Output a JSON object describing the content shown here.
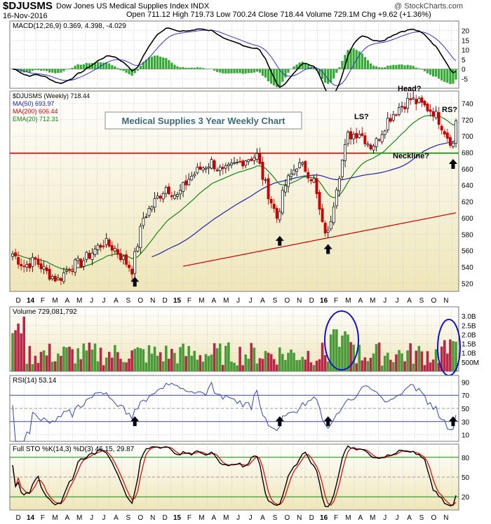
{
  "header": {
    "symbol": "$DJUSMS",
    "full_name": "Dow Jones US Medical Supplies Index INDX",
    "date": "16-Nov-2016",
    "ohlc_line": "Open 711.12  High 719.73  Low 700.24  Close 718.44  Volume 729.1M  Chg +9.62 (+1.36%)",
    "watermark": "@ StockCharts.com"
  },
  "chart_data": [
    {
      "type": "line",
      "panel": "MACD",
      "label": "MACD(12,26,9) 0.369, 4.398, -4.029",
      "ylim": [
        -10,
        25
      ],
      "y_ticks": [
        "-5",
        "0",
        "5",
        "10",
        "15",
        "20"
      ],
      "colors": {
        "macd": "#000000",
        "signal": "#3333cc",
        "hist": "#33aa33"
      }
    },
    {
      "type": "candlestick",
      "panel": "Price",
      "title": "Medical Supplies 3 Year Weekly Chart",
      "legend": [
        {
          "label": "$DJUSMS (Weekly) 718.44",
          "color": "#000000"
        },
        {
          "label": "MA(50) 693.97",
          "color": "#2222aa"
        },
        {
          "label": "MA(200) 606.44",
          "color": "#cc0000"
        },
        {
          "label": "EMA(20) 712.31",
          "color": "#118811"
        }
      ],
      "ylim": [
        510,
        755
      ],
      "y_ticks": [
        "520",
        "540",
        "560",
        "580",
        "600",
        "620",
        "640",
        "660",
        "680",
        "700",
        "720",
        "740"
      ],
      "horizontal_line": {
        "value": 679,
        "color": "#dd0000"
      },
      "neckline": {
        "value": 679,
        "color": "#119911"
      },
      "annotations": [
        "Head?",
        "LS?",
        "RS?",
        "Neckline?"
      ],
      "arrow_lows": [
        533,
        583,
        573,
        677
      ],
      "x_tick_labels": [
        "D",
        "14",
        "F",
        "M",
        "A",
        "M",
        "J",
        "J",
        "A",
        "S",
        "O",
        "N",
        "D",
        "15",
        "F",
        "M",
        "A",
        "M",
        "J",
        "J",
        "A",
        "S",
        "O",
        "N",
        "D",
        "16",
        "F",
        "M",
        "A",
        "M",
        "J",
        "J",
        "A",
        "S",
        "O",
        "N"
      ],
      "anchors": [
        {
          "w": 0,
          "close": 556
        },
        {
          "w": 4,
          "close": 541
        },
        {
          "w": 8,
          "close": 548
        },
        {
          "w": 12,
          "close": 533
        },
        {
          "w": 16,
          "close": 524
        },
        {
          "w": 20,
          "close": 540
        },
        {
          "w": 24,
          "close": 545
        },
        {
          "w": 28,
          "close": 558
        },
        {
          "w": 32,
          "close": 570
        },
        {
          "w": 36,
          "close": 562
        },
        {
          "w": 40,
          "close": 545
        },
        {
          "w": 42,
          "close": 537
        },
        {
          "w": 46,
          "close": 600
        },
        {
          "w": 50,
          "close": 620
        },
        {
          "w": 54,
          "close": 638
        },
        {
          "w": 58,
          "close": 626
        },
        {
          "w": 62,
          "close": 648
        },
        {
          "w": 66,
          "close": 660
        },
        {
          "w": 70,
          "close": 668
        },
        {
          "w": 74,
          "close": 655
        },
        {
          "w": 78,
          "close": 664
        },
        {
          "w": 82,
          "close": 672
        },
        {
          "w": 86,
          "close": 676
        },
        {
          "w": 88,
          "close": 650
        },
        {
          "w": 91,
          "close": 620
        },
        {
          "w": 93,
          "close": 600
        },
        {
          "w": 96,
          "close": 640
        },
        {
          "w": 100,
          "close": 665
        },
        {
          "w": 103,
          "close": 660
        },
        {
          "w": 106,
          "close": 645
        },
        {
          "w": 109,
          "close": 590
        },
        {
          "w": 111,
          "close": 580
        },
        {
          "w": 114,
          "close": 640
        },
        {
          "w": 118,
          "close": 700
        },
        {
          "w": 122,
          "close": 705
        },
        {
          "w": 126,
          "close": 688
        },
        {
          "w": 128,
          "close": 693
        },
        {
          "w": 132,
          "close": 720
        },
        {
          "w": 136,
          "close": 735
        },
        {
          "w": 140,
          "close": 745
        },
        {
          "w": 144,
          "close": 738
        },
        {
          "w": 148,
          "close": 730
        },
        {
          "w": 150,
          "close": 720
        },
        {
          "w": 153,
          "close": 700
        },
        {
          "w": 155,
          "close": 690
        },
        {
          "w": 156,
          "close": 718
        }
      ]
    },
    {
      "type": "bar",
      "panel": "Volume",
      "label": "Volume 729,081,792",
      "ylim": [
        0,
        3500
      ],
      "y_ticks": [
        "500M",
        "1.0B",
        "1.5B",
        "2.0B",
        "2.5B",
        "3.0B"
      ],
      "typical_range": [
        300,
        1600
      ],
      "ellipses": 2
    },
    {
      "type": "line",
      "panel": "RSI",
      "label": "RSI(14) 53.14",
      "ylim": [
        0,
        100
      ],
      "y_ticks": [
        "10",
        "30",
        "50",
        "70",
        "90"
      ],
      "ref_lines": [
        30,
        50,
        70
      ],
      "arrow_count": 4
    },
    {
      "type": "line",
      "panel": "Stochastic",
      "label": "Full STO %K(14,3) %D(3) 46.15, 29.87",
      "ylim": [
        0,
        100
      ],
      "y_ticks": [
        "20",
        "50",
        "80"
      ],
      "ref_lines": [
        20,
        50,
        80
      ]
    }
  ]
}
